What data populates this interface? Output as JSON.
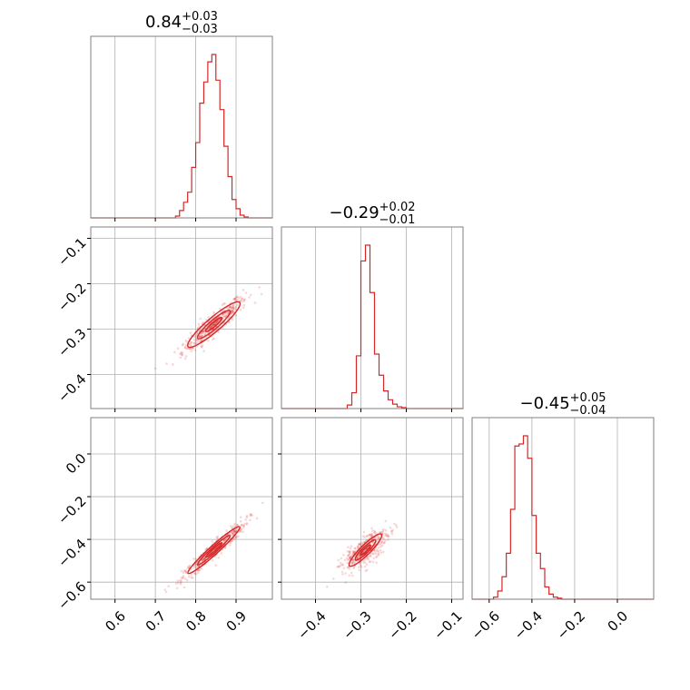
{
  "chart_data": {
    "type": "corner",
    "colors": {
      "series": "#d62728",
      "grid": "#b0b0b0",
      "frame": "#808080"
    },
    "grid": true,
    "parameter_titles": [
      {
        "value": "0.84",
        "plus": "+0.03",
        "minus": "−0.03"
      },
      {
        "value": "−0.29",
        "plus": "+0.02",
        "minus": "−0.01"
      },
      {
        "value": "−0.45",
        "plus": "+0.05",
        "minus": "−0.04"
      }
    ],
    "axes": [
      {
        "range": [
          0.54,
          0.99
        ],
        "ticks": [
          0.6,
          0.7,
          0.8,
          0.9
        ],
        "tick_labels": [
          "0.6",
          "0.7",
          "0.8",
          "0.9"
        ]
      },
      {
        "range": [
          -0.475,
          -0.075
        ],
        "ticks": [
          -0.4,
          -0.3,
          -0.2,
          -0.1
        ],
        "tick_labels": [
          "−0.4",
          "−0.3",
          "−0.2",
          "−0.1"
        ]
      },
      {
        "range": [
          -0.68,
          0.17
        ],
        "ticks": [
          -0.6,
          -0.4,
          -0.2,
          0.0
        ],
        "tick_labels": [
          "−0.6",
          "−0.4",
          "−0.2",
          "0.0"
        ]
      }
    ],
    "histograms": [
      {
        "edges": [
          0.54,
          0.75,
          0.76,
          0.77,
          0.78,
          0.79,
          0.8,
          0.81,
          0.82,
          0.83,
          0.84,
          0.85,
          0.86,
          0.87,
          0.88,
          0.89,
          0.9,
          0.91,
          0.92,
          0.93,
          0.99
        ],
        "counts": [
          0,
          2,
          8,
          17,
          28,
          55,
          82,
          125,
          148,
          170,
          178,
          150,
          118,
          78,
          45,
          20,
          10,
          3,
          1,
          0
        ]
      },
      {
        "edges": [
          -0.475,
          -0.33,
          -0.32,
          -0.31,
          -0.3,
          -0.29,
          -0.28,
          -0.27,
          -0.26,
          -0.25,
          -0.24,
          -0.23,
          -0.22,
          -0.21,
          -0.2,
          -0.075
        ],
        "counts": [
          0,
          4,
          18,
          60,
          168,
          186,
          132,
          62,
          38,
          20,
          10,
          5,
          2,
          1,
          0
        ]
      },
      {
        "edges": [
          -0.68,
          -0.58,
          -0.56,
          -0.54,
          -0.52,
          -0.5,
          -0.48,
          -0.46,
          -0.44,
          -0.42,
          -0.4,
          -0.38,
          -0.36,
          -0.34,
          -0.32,
          -0.3,
          -0.28,
          -0.26,
          0.17
        ],
        "counts": [
          0,
          2,
          8,
          22,
          45,
          88,
          150,
          152,
          160,
          138,
          82,
          45,
          30,
          12,
          5,
          2,
          1,
          0
        ]
      }
    ],
    "pairs": [
      {
        "col": 0,
        "row": 1,
        "slope": 0.76,
        "center": [
          0.845,
          -0.29
        ],
        "spread": 0.04,
        "width": 0.008
      },
      {
        "col": 0,
        "row": 2,
        "slope": 1.7,
        "center": [
          0.845,
          -0.45
        ],
        "spread": 0.04,
        "width": 0.008
      },
      {
        "col": 1,
        "row": 2,
        "slope": 2.1,
        "center": [
          -0.29,
          -0.45
        ],
        "spread": 0.022,
        "width": 0.012
      }
    ]
  }
}
